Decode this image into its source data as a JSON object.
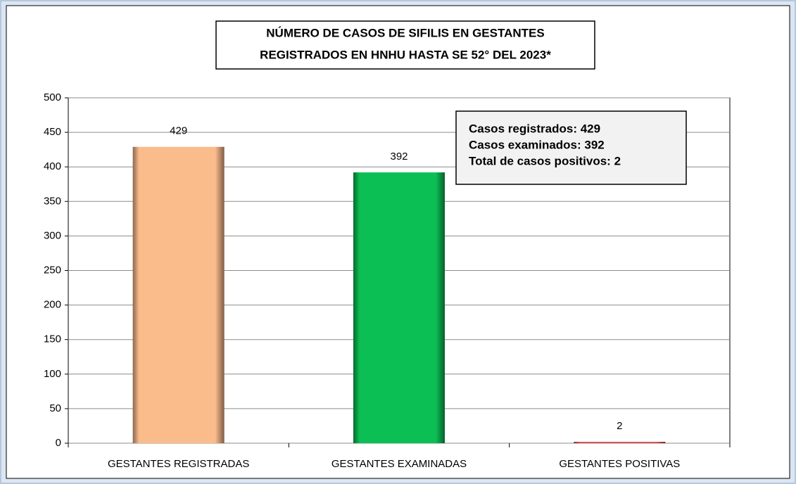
{
  "chart_data": {
    "type": "bar",
    "title": [
      "NÚMERO DE CASOS DE SIFILIS EN GESTANTES",
      "REGISTRADOS EN HNHU HASTA SE 52° DEL 2023*"
    ],
    "annotation": [
      "Casos registrados: 429",
      "Casos examinados: 392",
      "Total de casos positivos: 2"
    ],
    "categories": [
      "GESTANTES REGISTRADAS",
      "GESTANTES EXAMINADAS",
      "GESTANTES POSITIVAS"
    ],
    "values": [
      429,
      392,
      2
    ],
    "colors": [
      "#fbbc8c",
      "#0cbf55",
      "#d9534f"
    ],
    "ylim": [
      0,
      500
    ],
    "yticks": [
      0,
      50,
      100,
      150,
      200,
      250,
      300,
      350,
      400,
      450,
      500
    ],
    "grid": true
  }
}
